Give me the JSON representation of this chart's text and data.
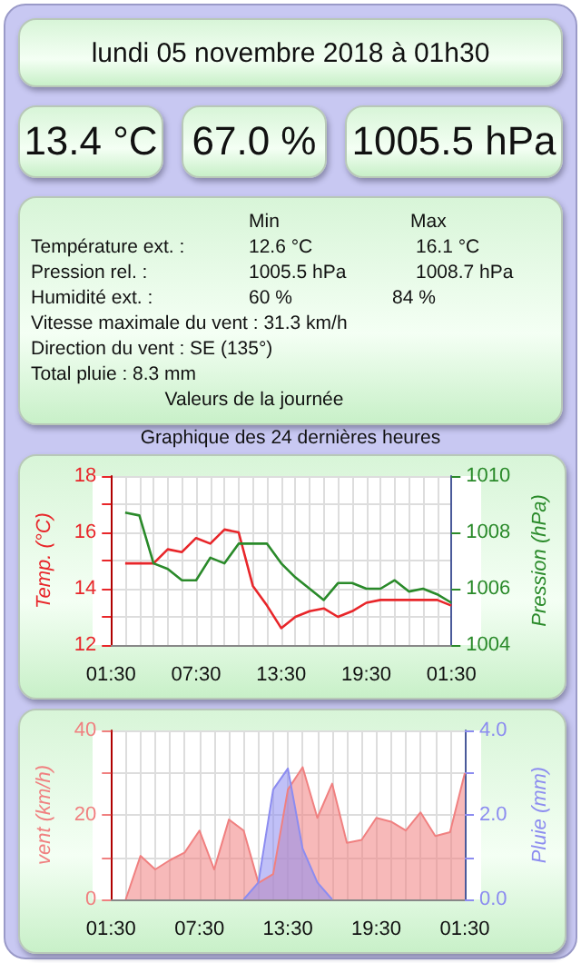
{
  "chart_data": [
    {
      "type": "other",
      "title": "lundi 05 novembre 2018 à 01h30",
      "annotations": [
        "13.4 °C",
        "67.0 %",
        "1005.5 hPa",
        "Min",
        "Max",
        "Température ext. :",
        "12.6 °C",
        "16.1 °C",
        "Pression rel. :",
        "1005.5 hPa",
        "1008.7 hPa",
        "Humidité ext. :",
        "60 %",
        "84 %",
        "Vitesse maximale du vent : 31.3 km/h",
        "Direction du vent : SE (135°)",
        "Total pluie : 8.3 mm",
        "Valeurs de la journée"
      ]
    },
    {
      "type": "line",
      "title": "Graphique des 24 dernières heures",
      "ylabel": "Temp. (°C)",
      "y2label": "Pression (hPa)",
      "grid": true,
      "x": [
        "2018-11-04T02:30",
        "2018-11-04T03:30",
        "2018-11-04T04:30",
        "2018-11-04T05:30",
        "2018-11-04T06:30",
        "2018-11-04T07:30",
        "2018-11-04T08:30",
        "2018-11-04T09:30",
        "2018-11-04T10:30",
        "2018-11-04T11:30",
        "2018-11-04T12:30",
        "2018-11-04T13:30",
        "2018-11-04T14:30",
        "2018-11-04T15:30",
        "2018-11-04T16:30",
        "2018-11-04T17:30",
        "2018-11-04T18:30",
        "2018-11-04T19:30",
        "2018-11-04T20:30",
        "2018-11-04T21:30",
        "2018-11-04T22:30",
        "2018-11-04T23:30",
        "2018-11-05T00:30",
        "2018-11-05T01:30"
      ],
      "xlim": [
        "2018-11-04T01:30",
        "2018-11-05T01:30"
      ],
      "xticks": [
        {
          "value": "2018-11-04T01:30",
          "label": "01:30"
        },
        {
          "value": "2018-11-04T02:30",
          "label": null
        },
        {
          "value": "2018-11-04T03:30",
          "label": null
        },
        {
          "value": "2018-11-04T04:30",
          "label": null
        },
        {
          "value": "2018-11-04T05:30",
          "label": null
        },
        {
          "value": "2018-11-04T06:30",
          "label": null
        },
        {
          "value": "2018-11-04T07:30",
          "label": "07:30"
        },
        {
          "value": "2018-11-04T08:30",
          "label": null
        },
        {
          "value": "2018-11-04T09:30",
          "label": null
        },
        {
          "value": "2018-11-04T10:30",
          "label": null
        },
        {
          "value": "2018-11-04T11:30",
          "label": null
        },
        {
          "value": "2018-11-04T12:30",
          "label": null
        },
        {
          "value": "2018-11-04T13:30",
          "label": "13:30"
        },
        {
          "value": "2018-11-04T14:30",
          "label": null
        },
        {
          "value": "2018-11-04T15:30",
          "label": null
        },
        {
          "value": "2018-11-04T16:30",
          "label": null
        },
        {
          "value": "2018-11-04T17:30",
          "label": null
        },
        {
          "value": "2018-11-04T18:30",
          "label": null
        },
        {
          "value": "2018-11-04T19:30",
          "label": "19:30"
        },
        {
          "value": "2018-11-04T20:30",
          "label": null
        },
        {
          "value": "2018-11-04T21:30",
          "label": null
        },
        {
          "value": "2018-11-04T22:30",
          "label": null
        },
        {
          "value": "2018-11-04T23:30",
          "label": null
        },
        {
          "value": "2018-11-05T00:30",
          "label": null
        },
        {
          "value": "2018-11-05T01:30",
          "label": "01:30"
        }
      ],
      "ylim": [
        12,
        18
      ],
      "yticks": [
        12,
        {
          "value": 13,
          "label": null
        },
        14,
        {
          "value": 15,
          "label": null
        },
        16,
        {
          "value": 17,
          "label": null
        },
        18
      ],
      "y2lim": [
        1004,
        1010
      ],
      "y2ticks": [
        1004,
        1006,
        1008,
        1010
      ],
      "series": [
        {
          "color": "#e8262a",
          "values": [
            14.9,
            14.9,
            14.9,
            15.4,
            15.3,
            15.8,
            15.6,
            16.1,
            16.0,
            14.1,
            13.4,
            12.6,
            13.0,
            13.2,
            13.3,
            13.0,
            13.2,
            13.5,
            13.6,
            13.6,
            13.6,
            13.6,
            13.6,
            13.4
          ]
        },
        {
          "color": "#2a8a2a",
          "axis": "y2",
          "values": [
            1008.7,
            1008.6,
            1006.9,
            1006.7,
            1006.3,
            1006.3,
            1007.1,
            1006.9,
            1007.6,
            1007.6,
            1007.6,
            1006.9,
            1006.4,
            1006.0,
            1005.6,
            1006.2,
            1006.2,
            1006.0,
            1006.0,
            1006.3,
            1005.9,
            1006.0,
            1005.8,
            1005.5
          ]
        }
      ]
    },
    {
      "type": "area",
      "ylabel": "vent (km/h)",
      "y2label": "Pluie (mm)",
      "grid": true,
      "x": [
        "2018-11-04T02:30",
        "2018-11-04T03:30",
        "2018-11-04T04:30",
        "2018-11-04T05:30",
        "2018-11-04T06:30",
        "2018-11-04T07:30",
        "2018-11-04T08:30",
        "2018-11-04T09:30",
        "2018-11-04T10:30",
        "2018-11-04T11:30",
        "2018-11-04T12:30",
        "2018-11-04T13:30",
        "2018-11-04T14:30",
        "2018-11-04T15:30",
        "2018-11-04T16:30",
        "2018-11-04T17:30",
        "2018-11-04T18:30",
        "2018-11-04T19:30",
        "2018-11-04T20:30",
        "2018-11-04T21:30",
        "2018-11-04T22:30",
        "2018-11-04T23:30",
        "2018-11-05T00:30",
        "2018-11-05T01:30"
      ],
      "xlim": [
        "2018-11-04T01:30",
        "2018-11-05T01:30"
      ],
      "xticks": [
        {
          "value": "2018-11-04T01:30",
          "label": "01:30"
        },
        {
          "value": "2018-11-04T02:30",
          "label": null
        },
        {
          "value": "2018-11-04T03:30",
          "label": null
        },
        {
          "value": "2018-11-04T04:30",
          "label": null
        },
        {
          "value": "2018-11-04T05:30",
          "label": null
        },
        {
          "value": "2018-11-04T06:30",
          "label": null
        },
        {
          "value": "2018-11-04T07:30",
          "label": "07:30"
        },
        {
          "value": "2018-11-04T08:30",
          "label": null
        },
        {
          "value": "2018-11-04T09:30",
          "label": null
        },
        {
          "value": "2018-11-04T10:30",
          "label": null
        },
        {
          "value": "2018-11-04T11:30",
          "label": null
        },
        {
          "value": "2018-11-04T12:30",
          "label": null
        },
        {
          "value": "2018-11-04T13:30",
          "label": "13:30"
        },
        {
          "value": "2018-11-04T14:30",
          "label": null
        },
        {
          "value": "2018-11-04T15:30",
          "label": null
        },
        {
          "value": "2018-11-04T16:30",
          "label": null
        },
        {
          "value": "2018-11-04T17:30",
          "label": null
        },
        {
          "value": "2018-11-04T18:30",
          "label": null
        },
        {
          "value": "2018-11-04T19:30",
          "label": "19:30"
        },
        {
          "value": "2018-11-04T20:30",
          "label": null
        },
        {
          "value": "2018-11-04T21:30",
          "label": null
        },
        {
          "value": "2018-11-04T22:30",
          "label": null
        },
        {
          "value": "2018-11-04T23:30",
          "label": null
        },
        {
          "value": "2018-11-05T00:30",
          "label": null
        },
        {
          "value": "2018-11-05T01:30",
          "label": "01:30"
        }
      ],
      "ylim": [
        0,
        40
      ],
      "yticks": [
        0,
        {
          "value": 10,
          "label": null
        },
        20,
        {
          "value": 30,
          "label": null
        },
        40
      ],
      "y2lim": [
        0,
        4
      ],
      "y2ticks": [
        {
          "value": 0,
          "label": "0.0"
        },
        {
          "value": 1,
          "label": null
        },
        {
          "value": 2,
          "label": "2.0"
        },
        {
          "value": 3,
          "label": null
        },
        {
          "value": 4,
          "label": "4.0"
        }
      ],
      "series": [
        {
          "color": "#f08080",
          "values": [
            0,
            10.3,
            7.1,
            9.3,
            11.1,
            16.3,
            7.1,
            18.9,
            16.3,
            3.9,
            6.0,
            26,
            31.3,
            19.3,
            27.4,
            13.4,
            14.1,
            19.3,
            18.4,
            16.3,
            20.6,
            15.0,
            15.9,
            29.9
          ]
        },
        {
          "color": "#8c8cf0",
          "axis": "y2",
          "values": [
            null,
            null,
            null,
            null,
            null,
            null,
            null,
            null,
            0,
            0.4,
            2.6,
            3.1,
            1.2,
            0.4,
            0,
            null,
            null,
            null,
            null,
            null,
            null,
            null,
            null,
            null
          ]
        }
      ]
    }
  ]
}
